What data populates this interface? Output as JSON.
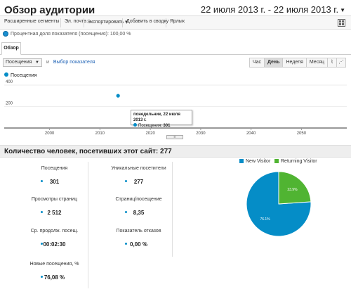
{
  "page": {
    "title": "Обзор аудитории",
    "date_range": "22 июля 2013 г. - 22 июля 2013 г."
  },
  "toolbar": {
    "items": [
      "Расширенные сегменты",
      "Эл. почта",
      "Экспортировать",
      "Добавить в сводку",
      "Ярлык"
    ]
  },
  "segment_label": "Процентная доля показателя (посещения): 100,00 %",
  "tab": "Обзор",
  "chart_controls": {
    "metric_select": "Посещения",
    "vs": "и",
    "pick_metric": "Выбор показателя",
    "granularity": [
      "Час",
      "День",
      "Неделя",
      "Месяц"
    ],
    "active_granularity": "День"
  },
  "tooltip": {
    "date": "понедельник, 22 июля 2013 г.",
    "label": "Посещения:",
    "value": "301"
  },
  "chart_data": {
    "type": "scatter",
    "series": [
      {
        "name": "Посещения",
        "color": "#058dc7",
        "points": [
          {
            "x": 2013.6,
            "y": 301
          }
        ]
      }
    ],
    "x_ticks": [
      "2000",
      "2010",
      "2020",
      "2030",
      "2040",
      "2050"
    ],
    "y_ticks": [
      "400",
      "200"
    ],
    "xlim": [
      1991,
      2059
    ],
    "ylim": [
      0,
      420
    ],
    "grid": true
  },
  "stats": {
    "headline": "Количество человек, посетивших этот сайт: 277",
    "metrics": [
      {
        "label": "Посещения",
        "value": "301"
      },
      {
        "label": "Уникальные посетители",
        "value": "277"
      },
      {
        "label": "Просмотры страниц",
        "value": "2 512"
      },
      {
        "label": "Страниц/посещение",
        "value": "8,35"
      },
      {
        "label": "Ср. продолж. посещ.",
        "value": "00:02:30"
      },
      {
        "label": "Показатель отказов",
        "value": "0,00 %"
      },
      {
        "label": "Новые посещения, %",
        "value": "76,08 %"
      }
    ]
  },
  "pie": {
    "legend": [
      "New Visitor",
      "Returning Visitor"
    ],
    "colors": [
      "#058dc7",
      "#50b432"
    ],
    "values": [
      76.1,
      23.9
    ],
    "labels": [
      "76.1%",
      "23.9%"
    ]
  }
}
